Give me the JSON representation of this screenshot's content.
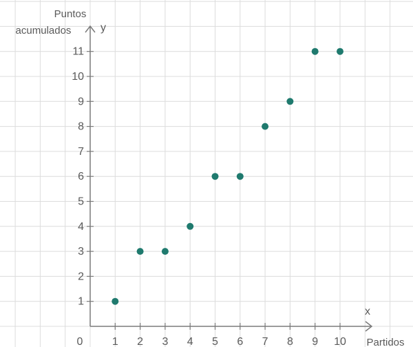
{
  "chart_data": {
    "type": "scatter",
    "title": "",
    "xlabel": "Partidos",
    "ylabel": "Puntos acumulados",
    "ylabel_lines": [
      "Puntos",
      "acumulados"
    ],
    "x_axis_symbol": "x",
    "y_axis_symbol": "y",
    "origin_label": "0",
    "xlim": [
      0,
      12
    ],
    "ylim": [
      0,
      12
    ],
    "x_ticks": [
      1,
      2,
      3,
      4,
      5,
      6,
      7,
      8,
      9,
      10
    ],
    "y_ticks": [
      1,
      2,
      3,
      4,
      5,
      6,
      7,
      8,
      9,
      10,
      11
    ],
    "grid": true,
    "legend": "none",
    "points": [
      {
        "x": 1,
        "y": 1
      },
      {
        "x": 2,
        "y": 3
      },
      {
        "x": 3,
        "y": 3
      },
      {
        "x": 4,
        "y": 4
      },
      {
        "x": 5,
        "y": 6
      },
      {
        "x": 6,
        "y": 6
      },
      {
        "x": 7,
        "y": 8
      },
      {
        "x": 8,
        "y": 9
      },
      {
        "x": 9,
        "y": 11
      },
      {
        "x": 10,
        "y": 11
      }
    ],
    "colors": {
      "point": "#1f7a6e",
      "grid": "#dcdcdc",
      "axis": "#7a7a7a",
      "text": "#5a5a5a"
    }
  }
}
